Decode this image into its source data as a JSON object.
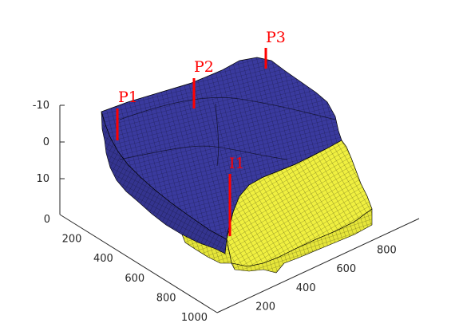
{
  "chart_data": {
    "type": "3d-surface",
    "title": "",
    "xlabel": "",
    "ylabel": "",
    "zlabel": "",
    "grid": "off",
    "colors": {
      "upper_cells": "#3a3a9e",
      "lower_cells": "#f0f040",
      "wells": "#ff0000",
      "axes": "#262626"
    },
    "x_axis": {
      "ticks": [
        200,
        400,
        600,
        800
      ],
      "range": [
        0,
        1000
      ]
    },
    "y_axis": {
      "ticks": [
        0,
        200,
        400,
        600,
        800,
        1000
      ],
      "range": [
        0,
        1000
      ]
    },
    "z_axis": {
      "ticks": [
        -10,
        0,
        10
      ],
      "direction": "reversed"
    },
    "wells": [
      {
        "name": "P1"
      },
      {
        "name": "P2"
      },
      {
        "name": "P3"
      },
      {
        "name": "I1"
      }
    ]
  }
}
